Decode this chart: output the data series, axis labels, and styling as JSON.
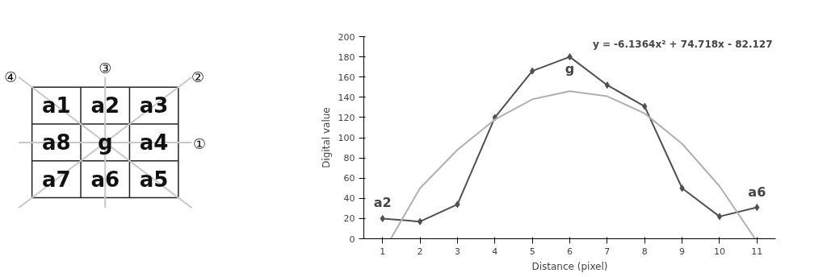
{
  "chart_data": [
    {
      "type": "other",
      "annotations": [
        "a1",
        "a2",
        "a3",
        "a8",
        "g",
        "a4",
        "a7",
        "a6",
        "a5",
        "①",
        "②",
        "③",
        "④"
      ]
    },
    {
      "type": "line",
      "xlabel": "Distance (pixel)",
      "ylabel": "Digital value",
      "xlim": [
        0.5,
        11.5
      ],
      "ylim": [
        0,
        200
      ],
      "xticks": [
        1,
        2,
        3,
        4,
        5,
        6,
        7,
        8,
        9,
        10,
        11
      ],
      "yticks": [
        0,
        20,
        40,
        60,
        80,
        100,
        120,
        140,
        160,
        180,
        200
      ],
      "grid": false,
      "marker": "diamond",
      "line_style": "solid",
      "series": [
        {
          "color": "#505050",
          "x": [
            1,
            2,
            3,
            4,
            5,
            6,
            7,
            8,
            9,
            10,
            11
          ],
          "values": [
            20,
            17,
            34,
            120,
            166,
            180,
            152,
            131,
            50,
            22,
            31
          ]
        },
        {
          "color": "#b0b0b0",
          "marker": "none",
          "x": [
            1.22,
            2,
            3,
            4,
            5,
            6,
            7,
            8,
            9,
            10,
            10.95
          ],
          "values": [
            0,
            50,
            88,
            118,
            138,
            146,
            141,
            124,
            94,
            52,
            0
          ]
        }
      ],
      "annotations": [
        "y = -6.1364x² + 74.718x - 82.127",
        {
          "text": "a2",
          "x": 1,
          "y": 20
        },
        {
          "text": "g",
          "x": 6,
          "y": 180
        },
        {
          "text": "a6",
          "x": 11,
          "y": 31
        }
      ]
    }
  ]
}
